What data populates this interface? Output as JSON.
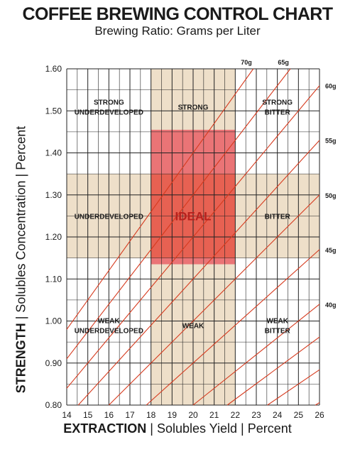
{
  "chart_data": {
    "type": "line",
    "title": "COFFEE BREWING CONTROL CHART",
    "subtitle": "Brewing Ratio: Grams per Liter",
    "xlabel": {
      "bold": "EXTRACTION",
      "rest": "| Solubles Yield | Percent"
    },
    "ylabel": {
      "bold": "STRENGTH",
      "rest": "| Solubles Concentration | Percent"
    },
    "xlim": [
      14,
      26
    ],
    "ylim": [
      0.8,
      1.6
    ],
    "x_ticks": [
      "14",
      "15",
      "16",
      "17",
      "18",
      "19",
      "20",
      "21",
      "22",
      "23",
      "24",
      "25",
      "26"
    ],
    "y_ticks": [
      "0.80",
      "0.90",
      "1.00",
      "1.10",
      "1.20",
      "1.30",
      "1.40",
      "1.50",
      "1.60"
    ],
    "grid": true,
    "ratio_lines": [
      {
        "label": "70g",
        "ratio": 70
      },
      {
        "label": "65g",
        "ratio": 65
      },
      {
        "label": "60g",
        "ratio": 60
      },
      {
        "label": "55g",
        "ratio": 55
      },
      {
        "label": "50g",
        "ratio": 50
      },
      {
        "label": "45g",
        "ratio": 45
      },
      {
        "label": "40g",
        "ratio": 40
      },
      {
        "label": "",
        "ratio": 37
      },
      {
        "label": "",
        "ratio": 34
      },
      {
        "label": "",
        "ratio": 31
      }
    ],
    "bands": {
      "ideal_extraction": [
        18,
        22
      ],
      "ideal_strength": [
        1.15,
        1.35
      ],
      "ideal_box": {
        "x": [
          18,
          22
        ],
        "y": [
          1.135,
          1.455
        ]
      }
    },
    "zones": [
      {
        "lines": [
          "STRONG",
          "UNDERDEVELOPED"
        ],
        "x": 16,
        "y": 1.51
      },
      {
        "lines": [
          "STRONG"
        ],
        "x": 20,
        "y": 1.51
      },
      {
        "lines": [
          "STRONG",
          "BITTER"
        ],
        "x": 24,
        "y": 1.51
      },
      {
        "lines": [
          "UNDERDEVELOPED"
        ],
        "x": 16,
        "y": 1.25
      },
      {
        "lines": [
          "IDEAL"
        ],
        "x": 20,
        "y": 1.25,
        "ideal": true
      },
      {
        "lines": [
          "BITTER"
        ],
        "x": 24,
        "y": 1.25
      },
      {
        "lines": [
          "WEAK",
          "UNDERDEVELOPED"
        ],
        "x": 16,
        "y": 0.99
      },
      {
        "lines": [
          "WEAK"
        ],
        "x": 20,
        "y": 0.99
      },
      {
        "lines": [
          "WEAK",
          "BITTER"
        ],
        "x": 24,
        "y": 0.99
      }
    ],
    "colors": {
      "band": "#eedfc9",
      "band_overlap": "#e3c9a6",
      "ideal_box": "#e8505a",
      "ideal_core": "#e8553c",
      "ratio_line": "#d63a1e",
      "grid": "#222222"
    }
  }
}
